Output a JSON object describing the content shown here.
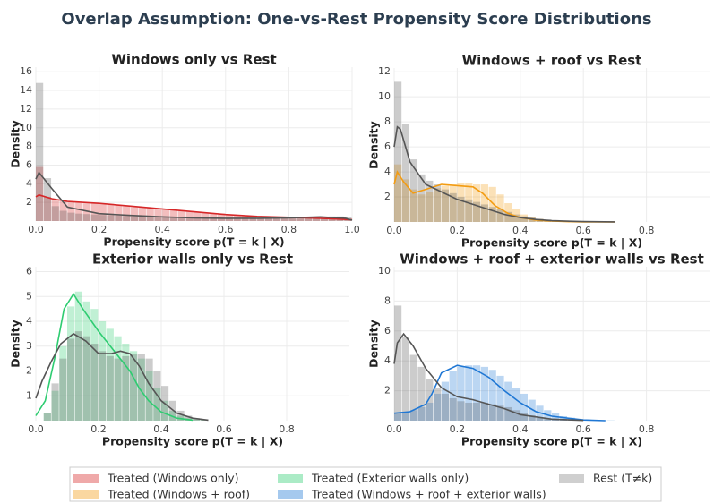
{
  "title": "Overlap Assumption: One-vs-Rest Propensity Score Distributions",
  "legend": [
    {
      "name": "Treated (Windows only)",
      "color": "#d62728"
    },
    {
      "name": "Treated (Windows + roof)",
      "color": "#f39c12"
    },
    {
      "name": "Treated (Exterior walls only)",
      "color": "#2ecc71"
    },
    {
      "name": "Treated (Windows + roof + exterior walls)",
      "color": "#1f77d4"
    },
    {
      "name": "Rest (T≠k)",
      "color": "#888888"
    }
  ],
  "chart_data": [
    {
      "type": "histogram",
      "title": "Windows only vs Rest",
      "xlabel": "Propensity score  p(T = k | X)",
      "ylabel": "Density",
      "xlim": [
        0,
        1
      ],
      "ylim": [
        0,
        16.5
      ],
      "grid": true,
      "xticks": [
        {
          "value": 0,
          "label": "0.0"
        },
        0.2,
        0.4,
        0.6,
        0.8,
        {
          "value": 1,
          "label": "1.0"
        }
      ],
      "yticks": [
        2,
        4,
        6,
        8,
        10,
        12,
        14,
        16
      ],
      "bins": [
        0,
        0.025,
        0.05,
        0.075,
        0.1,
        0.125,
        0.15,
        0.175,
        0.2,
        0.225,
        0.25,
        0.275,
        0.3,
        0.325,
        0.35,
        0.375,
        0.4,
        0.425,
        0.45,
        0.475,
        0.5,
        0.525,
        0.55,
        0.575,
        0.6,
        0.625,
        0.65,
        0.675,
        0.7,
        0.725,
        0.75,
        0.775,
        0.8,
        0.825,
        0.85,
        0.875,
        0.9,
        0.925,
        0.95,
        0.975,
        1
      ],
      "series": [
        {
          "color": "#d62728",
          "counts": [
            5.8,
            2.6,
            2.2,
            2.1,
            2.0,
            2.0,
            1.9,
            1.9,
            1.8,
            1.8,
            1.7,
            1.6,
            1.5,
            1.5,
            1.4,
            1.3,
            1.3,
            1.2,
            1.1,
            1.0,
            1.0,
            0.9,
            0.85,
            0.8,
            0.7,
            0.65,
            0.6,
            0.55,
            0.5,
            0.5,
            0.45,
            0.4,
            0.4,
            0.35,
            0.35,
            0.3,
            0.3,
            0.25,
            0.25,
            0.2
          ],
          "kde_x": [
            0,
            0.01,
            0.05,
            0.1,
            0.2,
            0.3,
            0.4,
            0.5,
            0.6,
            0.7,
            0.8,
            0.9,
            1.0
          ],
          "kde_values": [
            2.6,
            2.8,
            2.4,
            2.1,
            1.9,
            1.6,
            1.3,
            1.0,
            0.7,
            0.5,
            0.4,
            0.3,
            0.15
          ]
        },
        {
          "color": "#555555",
          "counts": [
            14.8,
            4.6,
            1.6,
            1.1,
            0.9,
            0.8,
            0.75,
            0.7,
            0.65,
            0.6,
            0.6,
            0.55,
            0.5,
            0.5,
            0.45,
            0.45,
            0.4,
            0.4,
            0.4,
            0.35,
            0.35,
            0.35,
            0.3,
            0.3,
            0.3,
            0.3,
            0.3,
            0.3,
            0.3,
            0.3,
            0.35,
            0.35,
            0.35,
            0.4,
            0.4,
            0.45,
            0.45,
            0.5,
            0.5,
            0.4
          ],
          "kde_x": [
            0,
            0.01,
            0.05,
            0.1,
            0.2,
            0.3,
            0.4,
            0.5,
            0.6,
            0.7,
            0.8,
            0.9,
            0.98,
            1.0
          ],
          "kde_values": [
            4.5,
            5.2,
            3.5,
            1.5,
            0.8,
            0.6,
            0.45,
            0.35,
            0.3,
            0.3,
            0.35,
            0.45,
            0.3,
            0.1
          ]
        }
      ]
    },
    {
      "type": "histogram",
      "title": "Windows + roof vs Rest",
      "xlabel": "Propensity score  p(T = k | X)",
      "ylabel": "Density",
      "xlim": [
        0,
        1
      ],
      "ylim": [
        0,
        12.3
      ],
      "grid": true,
      "xticks": [
        {
          "value": 0,
          "label": "0.0"
        },
        0.2,
        0.4,
        0.6,
        0.8
      ],
      "yticks": [
        2,
        4,
        6,
        8,
        10,
        12
      ],
      "bins": [
        0,
        0.025,
        0.05,
        0.075,
        0.1,
        0.125,
        0.15,
        0.175,
        0.2,
        0.225,
        0.25,
        0.275,
        0.3,
        0.325,
        0.35,
        0.375,
        0.4,
        0.425,
        0.45,
        0.475,
        0.5,
        0.525,
        0.55,
        0.575,
        0.6,
        0.625,
        0.65,
        0.675,
        0.7
      ],
      "series": [
        {
          "color": "#f39c12",
          "counts": [
            4.6,
            3.4,
            2.6,
            2.2,
            2.4,
            2.7,
            2.9,
            3.0,
            3.1,
            3.1,
            3.0,
            3.0,
            2.8,
            2.2,
            1.5,
            1.0,
            0.6,
            0.4,
            0.25,
            0.15,
            0.1,
            0.08,
            0.05,
            0.04,
            0.03,
            0.02,
            0.02,
            0.01
          ],
          "kde_x": [
            0,
            0.01,
            0.03,
            0.06,
            0.1,
            0.15,
            0.2,
            0.25,
            0.28,
            0.32,
            0.36,
            0.4,
            0.45,
            0.5,
            0.55,
            0.6,
            0.7
          ],
          "kde_values": [
            3.0,
            4.0,
            3.2,
            2.3,
            2.6,
            3.0,
            2.9,
            2.8,
            2.3,
            1.3,
            0.7,
            0.35,
            0.15,
            0.07,
            0.03,
            0.01,
            0
          ]
        },
        {
          "color": "#555555",
          "counts": [
            11.2,
            7.8,
            5.0,
            3.8,
            3.3,
            3.0,
            2.6,
            2.3,
            2.0,
            1.8,
            1.6,
            1.4,
            1.2,
            1.0,
            0.8,
            0.6,
            0.45,
            0.35,
            0.25,
            0.2,
            0.15,
            0.1,
            0.08,
            0.06,
            0.04,
            0.03,
            0.02,
            0.01
          ],
          "kde_x": [
            0,
            0.01,
            0.02,
            0.05,
            0.1,
            0.15,
            0.2,
            0.25,
            0.3,
            0.35,
            0.4,
            0.45,
            0.5,
            0.6,
            0.7
          ],
          "kde_values": [
            6.0,
            7.6,
            7.4,
            4.8,
            3.0,
            2.4,
            1.8,
            1.4,
            1.0,
            0.6,
            0.35,
            0.2,
            0.1,
            0.03,
            0.01
          ]
        }
      ]
    },
    {
      "type": "histogram",
      "title": "Exterior walls only vs Rest",
      "xlabel": "Propensity score  p(T = k | X)",
      "ylabel": "Density",
      "xlim": [
        0,
        1
      ],
      "ylim": [
        0,
        6.2
      ],
      "grid": true,
      "xticks": [
        {
          "value": 0,
          "label": "0.0"
        },
        0.2,
        0.4,
        0.6,
        0.8
      ],
      "yticks": [
        1,
        2,
        3,
        4,
        5,
        6
      ],
      "bins": [
        0,
        0.025,
        0.05,
        0.075,
        0.1,
        0.125,
        0.15,
        0.175,
        0.2,
        0.225,
        0.25,
        0.275,
        0.3,
        0.325,
        0.35,
        0.375,
        0.4,
        0.425,
        0.45,
        0.475,
        0.5,
        0.525,
        0.55
      ],
      "series": [
        {
          "color": "#2ecc71",
          "counts": [
            0,
            0.3,
            1.2,
            3.0,
            4.6,
            5.2,
            4.8,
            4.5,
            4.0,
            3.7,
            3.4,
            3.1,
            2.8,
            2.5,
            2.0,
            1.3,
            0.8,
            0.4,
            0.2,
            0.1,
            0.05,
            0.02
          ],
          "kde_x": [
            0,
            0.03,
            0.06,
            0.09,
            0.12,
            0.15,
            0.2,
            0.25,
            0.3,
            0.33,
            0.36,
            0.4,
            0.45,
            0.5
          ],
          "kde_values": [
            0.2,
            0.8,
            2.5,
            4.5,
            5.1,
            4.5,
            3.6,
            2.8,
            2.0,
            1.3,
            0.8,
            0.35,
            0.1,
            0.02
          ]
        },
        {
          "color": "#555555",
          "counts": [
            0,
            0.3,
            1.5,
            2.5,
            3.3,
            3.6,
            3.4,
            3.1,
            2.8,
            2.6,
            2.5,
            2.6,
            2.7,
            2.7,
            2.5,
            2.0,
            1.4,
            0.8,
            0.4,
            0.2,
            0.1,
            0.05
          ],
          "kde_x": [
            0,
            0.02,
            0.05,
            0.08,
            0.12,
            0.16,
            0.2,
            0.24,
            0.27,
            0.3,
            0.33,
            0.36,
            0.4,
            0.45,
            0.5,
            0.55
          ],
          "kde_values": [
            0.9,
            1.6,
            2.4,
            3.1,
            3.5,
            3.2,
            2.7,
            2.7,
            2.8,
            2.7,
            2.2,
            1.5,
            0.8,
            0.3,
            0.1,
            0.02
          ]
        }
      ]
    },
    {
      "type": "histogram",
      "title": "Windows + roof + exterior walls vs Rest",
      "xlabel": "Propensity score  p(T = k | X)",
      "ylabel": "Density",
      "xlim": [
        0,
        1
      ],
      "ylim": [
        0,
        10.3
      ],
      "grid": true,
      "xticks": [
        {
          "value": 0,
          "label": "0.0"
        },
        0.2,
        0.4,
        0.6,
        0.8
      ],
      "yticks": [
        2,
        4,
        6,
        8,
        10
      ],
      "bins": [
        0,
        0.025,
        0.05,
        0.075,
        0.1,
        0.125,
        0.15,
        0.175,
        0.2,
        0.225,
        0.25,
        0.275,
        0.3,
        0.325,
        0.35,
        0.375,
        0.4,
        0.425,
        0.45,
        0.475,
        0.5,
        0.525,
        0.55,
        0.575,
        0.6,
        0.625,
        0.65,
        0.675,
        0.7
      ],
      "series": [
        {
          "color": "#1f77d4",
          "counts": [
            0.5,
            0.6,
            0.7,
            0.9,
            1.2,
            1.8,
            2.6,
            3.3,
            3.6,
            3.7,
            3.7,
            3.6,
            3.4,
            3.0,
            2.6,
            2.2,
            1.8,
            1.4,
            1.0,
            0.7,
            0.5,
            0.3,
            0.2,
            0.12,
            0.08,
            0.05,
            0.03,
            0.02
          ],
          "kde_x": [
            0,
            0.05,
            0.1,
            0.12,
            0.15,
            0.2,
            0.25,
            0.3,
            0.35,
            0.4,
            0.45,
            0.5,
            0.6,
            0.67
          ],
          "kde_values": [
            0.5,
            0.6,
            1.1,
            1.8,
            3.2,
            3.7,
            3.5,
            2.9,
            2.0,
            1.2,
            0.6,
            0.3,
            0.05,
            0
          ]
        },
        {
          "color": "#555555",
          "counts": [
            7.7,
            5.6,
            4.4,
            3.6,
            2.8,
            2.2,
            1.8,
            1.5,
            1.3,
            1.2,
            1.2,
            1.2,
            1.1,
            1.0,
            0.9,
            0.7,
            0.5,
            0.35,
            0.2,
            0.15,
            0.1,
            0.05,
            0.03,
            0.02,
            0.01,
            0,
            0,
            0
          ],
          "kde_x": [
            0,
            0.01,
            0.03,
            0.06,
            0.1,
            0.15,
            0.2,
            0.25,
            0.3,
            0.35,
            0.4,
            0.5,
            0.6
          ],
          "kde_values": [
            3.8,
            5.2,
            5.8,
            5.0,
            3.5,
            2.2,
            1.6,
            1.4,
            1.1,
            0.8,
            0.4,
            0.1,
            0.02
          ]
        }
      ]
    }
  ]
}
